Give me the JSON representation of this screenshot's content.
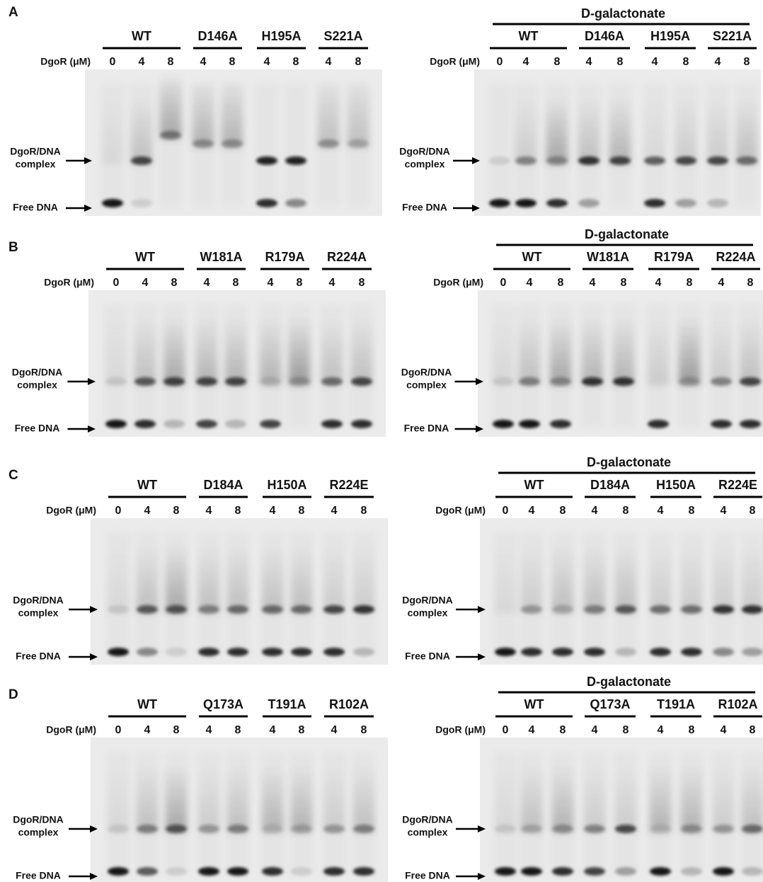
{
  "panels": [
    {
      "label": "A",
      "gels": [
        {
          "groups": [
            {
              "name": "WT",
              "doses": [
                "0",
                "4",
                "8"
              ]
            },
            {
              "name": "D146A",
              "doses": [
                "4",
                "8"
              ]
            },
            {
              "name": "H195A",
              "doses": [
                "4",
                "8"
              ]
            },
            {
              "name": "S221A",
              "doses": [
                "4",
                "8"
              ]
            }
          ],
          "dose_label": "DgoR (μM)",
          "complex_label": [
            "DgoR/DNA",
            "complex"
          ],
          "free_label": "Free DNA"
        },
        {
          "treatment": "D-galactonate",
          "groups": [
            {
              "name": "WT",
              "doses": [
                "0",
                "4",
                "8"
              ]
            },
            {
              "name": "D146A",
              "doses": [
                "4",
                "8"
              ]
            },
            {
              "name": "H195A",
              "doses": [
                "4",
                "8"
              ]
            },
            {
              "name": "S221A",
              "doses": [
                "4",
                "8"
              ]
            }
          ],
          "dose_label": "DgoR (μM)",
          "complex_label": [
            "DgoR/DNA",
            "complex"
          ],
          "free_label": "Free DNA"
        }
      ]
    },
    {
      "label": "B",
      "gels": [
        {
          "groups": [
            {
              "name": "WT",
              "doses": [
                "0",
                "4",
                "8"
              ]
            },
            {
              "name": "W181A",
              "doses": [
                "4",
                "8"
              ]
            },
            {
              "name": "R179A",
              "doses": [
                "4",
                "8"
              ]
            },
            {
              "name": "R224A",
              "doses": [
                "4",
                "8"
              ]
            }
          ],
          "dose_label": "DgoR (μM)",
          "complex_label": [
            "DgoR/DNA",
            "complex"
          ],
          "free_label": "Free DNA"
        },
        {
          "treatment": "D-galactonate",
          "groups": [
            {
              "name": "WT",
              "doses": [
                "0",
                "4",
                "8"
              ]
            },
            {
              "name": "W181A",
              "doses": [
                "4",
                "8"
              ]
            },
            {
              "name": "R179A",
              "doses": [
                "4",
                "8"
              ]
            },
            {
              "name": "R224A",
              "doses": [
                "4",
                "8"
              ]
            }
          ],
          "dose_label": "DgoR (μM)",
          "complex_label": [
            "DgoR/DNA",
            "complex"
          ],
          "free_label": "Free DNA"
        }
      ]
    },
    {
      "label": "C",
      "gels": [
        {
          "groups": [
            {
              "name": "WT",
              "doses": [
                "0",
                "4",
                "8"
              ]
            },
            {
              "name": "D184A",
              "doses": [
                "4",
                "8"
              ]
            },
            {
              "name": "H150A",
              "doses": [
                "4",
                "8"
              ]
            },
            {
              "name": "R224E",
              "doses": [
                "4",
                "8"
              ]
            }
          ],
          "dose_label": "DgoR (μM)",
          "complex_label": [
            "DgoR/DNA",
            "complex"
          ],
          "free_label": "Free DNA"
        },
        {
          "treatment": "D-galactonate",
          "groups": [
            {
              "name": "WT",
              "doses": [
                "0",
                "4",
                "8"
              ]
            },
            {
              "name": "D184A",
              "doses": [
                "4",
                "8"
              ]
            },
            {
              "name": "H150A",
              "doses": [
                "4",
                "8"
              ]
            },
            {
              "name": "R224E",
              "doses": [
                "4",
                "8"
              ]
            }
          ],
          "dose_label": "DgoR (μM)",
          "complex_label": [
            "DgoR/DNA",
            "complex"
          ],
          "free_label": "Free DNA"
        }
      ]
    },
    {
      "label": "D",
      "gels": [
        {
          "groups": [
            {
              "name": "WT",
              "doses": [
                "0",
                "4",
                "8"
              ]
            },
            {
              "name": "Q173A",
              "doses": [
                "4",
                "8"
              ]
            },
            {
              "name": "T191A",
              "doses": [
                "4",
                "8"
              ]
            },
            {
              "name": "R102A",
              "doses": [
                "4",
                "8"
              ]
            }
          ],
          "dose_label": "DgoR (μM)",
          "complex_label": [
            "DgoR/DNA",
            "complex"
          ],
          "free_label": "Free DNA"
        },
        {
          "treatment": "D-galactonate",
          "groups": [
            {
              "name": "WT",
              "doses": [
                "0",
                "4",
                "8"
              ]
            },
            {
              "name": "Q173A",
              "doses": [
                "4",
                "8"
              ]
            },
            {
              "name": "T191A",
              "doses": [
                "4",
                "8"
              ]
            },
            {
              "name": "R102A",
              "doses": [
                "4",
                "8"
              ]
            }
          ],
          "dose_label": "DgoR (μM)",
          "complex_label": [
            "DgoR/DNA",
            "complex"
          ],
          "free_label": "Free DNA"
        }
      ]
    }
  ]
}
